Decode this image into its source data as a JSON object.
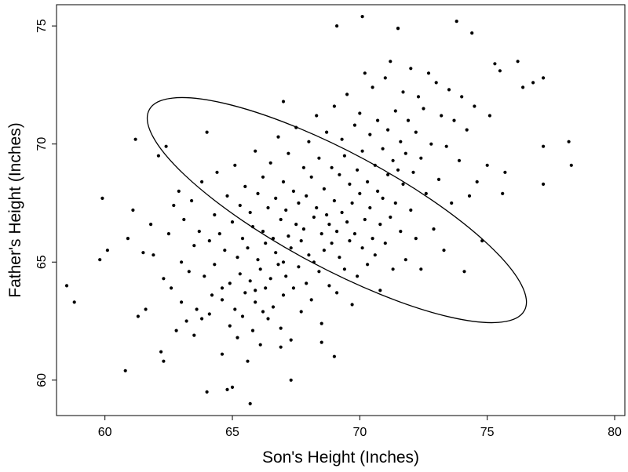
{
  "chart_data": {
    "type": "scatter",
    "title": "",
    "xlabel": "Son's Height (Inches)",
    "ylabel": "Father's Height (Inches)",
    "xlim": [
      58.1,
      80.4
    ],
    "ylim": [
      58.5,
      75.9
    ],
    "xticks": [
      60,
      65,
      70,
      75,
      80
    ],
    "yticks": [
      60,
      65,
      70,
      75
    ],
    "grid": false,
    "legend": "none",
    "point_color": "#000000",
    "ellipse": {
      "center": [
        69.1,
        67.2
      ],
      "semi_major": 8.5,
      "semi_minor": 2.4,
      "angle_deg": -30,
      "stroke": "#000000"
    },
    "series": [
      {
        "points": [
          [
            58.5,
            64.0
          ],
          [
            58.8,
            63.3
          ],
          [
            59.8,
            65.1
          ],
          [
            59.9,
            67.7
          ],
          [
            60.1,
            65.5
          ],
          [
            60.8,
            60.4
          ],
          [
            60.9,
            66.0
          ],
          [
            61.1,
            67.2
          ],
          [
            61.2,
            70.2
          ],
          [
            61.3,
            62.7
          ],
          [
            61.5,
            65.4
          ],
          [
            61.6,
            63.0
          ],
          [
            61.8,
            66.6
          ],
          [
            61.9,
            65.3
          ],
          [
            62.1,
            69.5
          ],
          [
            62.2,
            61.2
          ],
          [
            62.3,
            60.8
          ],
          [
            62.3,
            64.3
          ],
          [
            62.4,
            69.9
          ],
          [
            62.5,
            66.2
          ],
          [
            62.6,
            63.9
          ],
          [
            62.7,
            67.4
          ],
          [
            62.8,
            62.1
          ],
          [
            62.9,
            68.0
          ],
          [
            63.0,
            65.0
          ],
          [
            63.0,
            63.3
          ],
          [
            63.1,
            66.8
          ],
          [
            63.2,
            62.5
          ],
          [
            63.3,
            64.6
          ],
          [
            63.4,
            67.6
          ],
          [
            63.5,
            65.7
          ],
          [
            63.5,
            61.9
          ],
          [
            63.6,
            63.0
          ],
          [
            63.7,
            66.3
          ],
          [
            63.8,
            68.4
          ],
          [
            63.9,
            64.4
          ],
          [
            64.0,
            59.5
          ],
          [
            64.0,
            70.5
          ],
          [
            64.1,
            62.8
          ],
          [
            64.1,
            65.9
          ],
          [
            64.2,
            63.6
          ],
          [
            64.3,
            67.0
          ],
          [
            64.3,
            64.9
          ],
          [
            64.4,
            68.8
          ],
          [
            64.5,
            66.2
          ],
          [
            64.6,
            61.1
          ],
          [
            64.6,
            63.4
          ],
          [
            64.7,
            65.5
          ],
          [
            64.8,
            67.8
          ],
          [
            64.9,
            62.3
          ],
          [
            64.9,
            64.1
          ],
          [
            65.0,
            66.7
          ],
          [
            65.0,
            59.7
          ],
          [
            65.1,
            69.1
          ],
          [
            65.1,
            63.0
          ],
          [
            65.2,
            61.8
          ],
          [
            65.2,
            65.2
          ],
          [
            65.3,
            67.4
          ],
          [
            65.3,
            64.5
          ],
          [
            65.4,
            62.7
          ],
          [
            65.4,
            66.0
          ],
          [
            65.5,
            68.2
          ],
          [
            65.5,
            63.7
          ],
          [
            65.6,
            60.8
          ],
          [
            65.6,
            65.6
          ],
          [
            65.7,
            67.1
          ],
          [
            65.7,
            64.2
          ],
          [
            65.8,
            62.1
          ],
          [
            65.8,
            66.5
          ],
          [
            65.9,
            69.7
          ],
          [
            65.9,
            63.3
          ],
          [
            66.0,
            65.1
          ],
          [
            66.0,
            67.9
          ],
          [
            66.1,
            64.7
          ],
          [
            66.1,
            61.5
          ],
          [
            66.2,
            66.3
          ],
          [
            66.2,
            68.6
          ],
          [
            66.3,
            63.9
          ],
          [
            66.3,
            65.8
          ],
          [
            66.4,
            62.6
          ],
          [
            66.4,
            67.3
          ],
          [
            66.5,
            64.3
          ],
          [
            66.5,
            69.2
          ],
          [
            66.6,
            66.0
          ],
          [
            66.6,
            63.1
          ],
          [
            66.7,
            65.4
          ],
          [
            66.7,
            67.7
          ],
          [
            66.8,
            70.3
          ],
          [
            66.8,
            64.9
          ],
          [
            66.9,
            62.2
          ],
          [
            66.9,
            66.8
          ],
          [
            67.0,
            68.4
          ],
          [
            67.0,
            65.0
          ],
          [
            67.0,
            63.6
          ],
          [
            67.1,
            67.2
          ],
          [
            67.1,
            64.4
          ],
          [
            67.2,
            69.6
          ],
          [
            67.2,
            66.1
          ],
          [
            67.3,
            61.7
          ],
          [
            67.3,
            65.6
          ],
          [
            67.4,
            68.0
          ],
          [
            67.4,
            63.9
          ],
          [
            67.5,
            66.6
          ],
          [
            67.5,
            70.7
          ],
          [
            67.6,
            64.8
          ],
          [
            67.6,
            67.5
          ],
          [
            67.7,
            62.9
          ],
          [
            67.7,
            65.9
          ],
          [
            67.8,
            69.0
          ],
          [
            67.8,
            66.4
          ],
          [
            67.9,
            64.1
          ],
          [
            67.9,
            67.8
          ],
          [
            68.0,
            65.3
          ],
          [
            68.0,
            70.1
          ],
          [
            68.1,
            68.6
          ],
          [
            68.1,
            63.4
          ],
          [
            68.2,
            66.9
          ],
          [
            68.2,
            65.0
          ],
          [
            68.3,
            71.2
          ],
          [
            68.3,
            67.3
          ],
          [
            68.4,
            64.6
          ],
          [
            68.4,
            69.4
          ],
          [
            68.5,
            66.2
          ],
          [
            68.5,
            62.4
          ],
          [
            68.6,
            68.1
          ],
          [
            68.6,
            65.5
          ],
          [
            68.7,
            70.5
          ],
          [
            68.7,
            67.0
          ],
          [
            68.8,
            64.0
          ],
          [
            68.8,
            66.6
          ],
          [
            68.9,
            69.0
          ],
          [
            68.9,
            65.8
          ],
          [
            69.0,
            71.6
          ],
          [
            69.0,
            67.6
          ],
          [
            69.1,
            63.7
          ],
          [
            69.1,
            66.3
          ],
          [
            69.2,
            68.7
          ],
          [
            69.2,
            65.2
          ],
          [
            69.3,
            70.2
          ],
          [
            69.3,
            67.1
          ],
          [
            69.4,
            64.7
          ],
          [
            69.4,
            69.5
          ],
          [
            69.5,
            66.7
          ],
          [
            69.5,
            72.1
          ],
          [
            69.6,
            68.3
          ],
          [
            69.6,
            65.9
          ],
          [
            69.7,
            63.2
          ],
          [
            69.7,
            67.5
          ],
          [
            69.8,
            70.8
          ],
          [
            69.8,
            66.2
          ],
          [
            69.9,
            68.9
          ],
          [
            69.9,
            64.4
          ],
          [
            70.0,
            67.9
          ],
          [
            70.0,
            71.3
          ],
          [
            70.1,
            65.6
          ],
          [
            70.1,
            69.7
          ],
          [
            70.2,
            66.8
          ],
          [
            70.2,
            73.0
          ],
          [
            70.3,
            68.4
          ],
          [
            70.3,
            64.9
          ],
          [
            70.4,
            70.4
          ],
          [
            70.4,
            67.3
          ],
          [
            70.5,
            66.0
          ],
          [
            70.5,
            72.4
          ],
          [
            70.6,
            69.1
          ],
          [
            70.6,
            65.3
          ],
          [
            70.7,
            68.0
          ],
          [
            70.7,
            71.0
          ],
          [
            70.8,
            66.6
          ],
          [
            70.8,
            63.8
          ],
          [
            70.9,
            69.8
          ],
          [
            70.9,
            67.7
          ],
          [
            71.0,
            72.8
          ],
          [
            71.0,
            65.8
          ],
          [
            71.1,
            68.7
          ],
          [
            71.1,
            70.6
          ],
          [
            71.2,
            66.9
          ],
          [
            71.2,
            73.5
          ],
          [
            71.3,
            69.3
          ],
          [
            71.3,
            64.7
          ],
          [
            71.4,
            71.4
          ],
          [
            71.4,
            67.5
          ],
          [
            71.5,
            68.9
          ],
          [
            71.5,
            74.9
          ],
          [
            71.6,
            66.3
          ],
          [
            71.6,
            70.1
          ],
          [
            71.7,
            72.2
          ],
          [
            71.7,
            68.3
          ],
          [
            71.8,
            65.1
          ],
          [
            71.8,
            69.6
          ],
          [
            71.9,
            71.0
          ],
          [
            72.0,
            67.2
          ],
          [
            72.0,
            73.2
          ],
          [
            72.1,
            68.8
          ],
          [
            72.2,
            70.5
          ],
          [
            72.2,
            66.0
          ],
          [
            72.3,
            72.0
          ],
          [
            72.4,
            69.4
          ],
          [
            72.4,
            64.7
          ],
          [
            72.5,
            71.5
          ],
          [
            72.6,
            67.9
          ],
          [
            72.7,
            73.0
          ],
          [
            72.8,
            70.0
          ],
          [
            72.9,
            66.4
          ],
          [
            73.0,
            72.6
          ],
          [
            73.1,
            68.5
          ],
          [
            73.2,
            71.2
          ],
          [
            73.3,
            65.5
          ],
          [
            73.4,
            69.9
          ],
          [
            73.5,
            72.3
          ],
          [
            73.6,
            67.5
          ],
          [
            73.7,
            71.0
          ],
          [
            73.8,
            75.2
          ],
          [
            73.9,
            69.3
          ],
          [
            74.0,
            72.0
          ],
          [
            74.1,
            64.6
          ],
          [
            74.2,
            70.6
          ],
          [
            74.3,
            67.8
          ],
          [
            74.4,
            74.7
          ],
          [
            74.5,
            71.6
          ],
          [
            74.6,
            68.4
          ],
          [
            74.8,
            65.9
          ],
          [
            75.0,
            69.1
          ],
          [
            75.1,
            71.2
          ],
          [
            75.3,
            73.4
          ],
          [
            75.5,
            73.1
          ],
          [
            75.6,
            67.9
          ],
          [
            75.7,
            68.8
          ],
          [
            76.2,
            73.5
          ],
          [
            76.4,
            72.4
          ],
          [
            76.8,
            72.6
          ],
          [
            77.2,
            72.8
          ],
          [
            77.2,
            69.9
          ],
          [
            77.2,
            68.3
          ],
          [
            78.2,
            70.1
          ],
          [
            78.3,
            69.1
          ],
          [
            70.1,
            75.4
          ],
          [
            69.1,
            75.0
          ],
          [
            71.5,
            74.9
          ],
          [
            67.0,
            71.8
          ],
          [
            65.7,
            59.0
          ],
          [
            64.8,
            59.6
          ],
          [
            67.3,
            60.0
          ],
          [
            69.0,
            61.0
          ],
          [
            68.5,
            61.6
          ],
          [
            66.9,
            61.4
          ],
          [
            65.9,
            63.8
          ],
          [
            66.2,
            62.9
          ],
          [
            64.6,
            63.9
          ],
          [
            63.8,
            62.6
          ]
        ]
      }
    ]
  }
}
